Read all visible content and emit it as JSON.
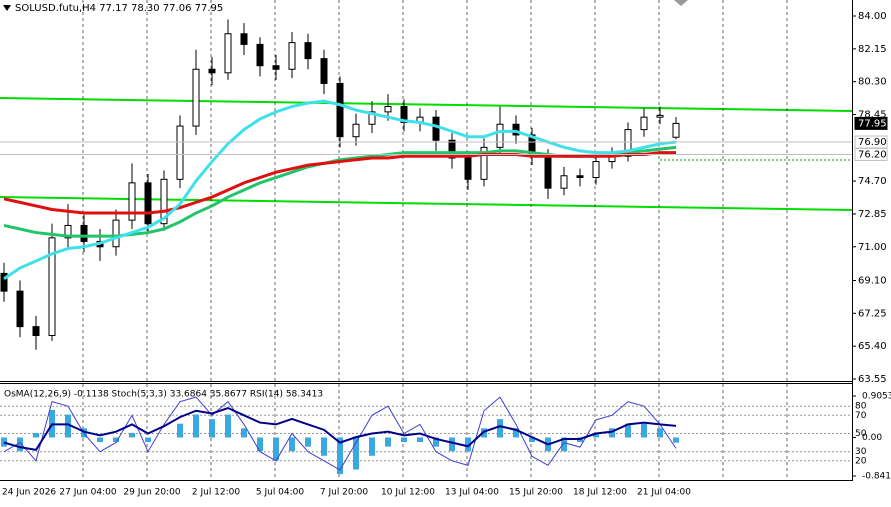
{
  "chart_data": [
    {
      "type": "candlestick",
      "title": "SOLUSD.futu,H4 77.17 78.30 77.06 77.95",
      "ylim": [
        63.55,
        84
      ],
      "yticks": [
        {
          "value": 84,
          "label": "84.00"
        },
        82.15,
        {
          "value": 80.3,
          "label": "80.30"
        },
        78.45,
        {
          "value": 74.7,
          "label": "74.70"
        },
        72.85,
        {
          "value": 71,
          "label": "71.00"
        },
        {
          "value": 69.1,
          "label": "69.10"
        },
        67.25,
        {
          "value": 65.4,
          "label": "65.40"
        },
        63.55
      ],
      "price_tags": [
        {
          "value": 77.95,
          "color": "#000000"
        },
        {
          "value": 76.9,
          "label": "76.90",
          "color": "#c0c0c0"
        },
        {
          "value": 76.2,
          "label": "76.20",
          "color": "#c0c0c0"
        }
      ],
      "xtick_labels": [
        "24 Jun 2026",
        "27 Jun 04:00",
        "29 Jun 20:00",
        "2 Jul 12:00",
        "5 Jul 04:00",
        "7 Jul 20:00",
        "10 Jul 12:00",
        "13 Jul 04:00",
        "15 Jul 20:00",
        "18 Jul 12:00",
        "21 Jul 04:00"
      ],
      "open": [
        69.5,
        68.5,
        66.5,
        66.0,
        71.5,
        72.2,
        71.3,
        71.0,
        72.5,
        74.6,
        72.3,
        74.8,
        77.8,
        81.0,
        80.8,
        83.0,
        82.4,
        81.2,
        81.0,
        82.5,
        81.6,
        80.2,
        77.2,
        77.9,
        78.6,
        78.9,
        78.0,
        78.3,
        77.0,
        76.0,
        74.8,
        76.6,
        77.9,
        77.3,
        76.1,
        74.3,
        75.0,
        74.9,
        75.8,
        76.1,
        77.6,
        78.3,
        77.17
      ],
      "high": [
        70.1,
        69.1,
        67.1,
        72.3,
        73.4,
        72.8,
        72.0,
        73.1,
        75.7,
        75.1,
        75.3,
        78.4,
        82.1,
        81.7,
        83.8,
        83.6,
        82.8,
        81.8,
        83.1,
        83.0,
        82.1,
        80.6,
        78.5,
        79.2,
        79.6,
        79.3,
        78.8,
        78.7,
        77.4,
        76.4,
        77.1,
        78.9,
        78.4,
        77.7,
        76.5,
        75.5,
        75.4,
        76.2,
        76.6,
        78.0,
        78.8,
        78.9,
        78.3
      ],
      "low": [
        67.9,
        65.9,
        65.2,
        65.7,
        70.9,
        70.7,
        70.2,
        70.5,
        72.0,
        71.8,
        71.9,
        74.3,
        77.3,
        80.1,
        80.4,
        81.8,
        80.6,
        80.4,
        80.5,
        81.0,
        79.6,
        76.6,
        76.7,
        77.4,
        78.1,
        77.5,
        77.5,
        76.4,
        75.4,
        74.2,
        74.4,
        76.2,
        76.8,
        75.6,
        73.7,
        73.9,
        74.4,
        74.5,
        75.4,
        75.8,
        77.2,
        77.9,
        77.06
      ],
      "close": [
        68.5,
        66.5,
        66.0,
        71.5,
        72.2,
        71.3,
        71.0,
        72.5,
        74.6,
        72.3,
        74.8,
        77.8,
        81.0,
        80.8,
        83.0,
        82.4,
        81.2,
        81.0,
        82.5,
        81.6,
        80.2,
        77.2,
        77.9,
        78.6,
        78.9,
        78.0,
        78.3,
        77.0,
        76.0,
        74.8,
        76.6,
        77.9,
        77.3,
        76.1,
        74.3,
        75.0,
        74.9,
        75.8,
        76.1,
        77.6,
        78.3,
        78.4,
        77.95
      ],
      "overlays": [
        {
          "color": "#22c46a",
          "values": [
            72.2,
            72.0,
            71.8,
            71.7,
            71.6,
            71.6,
            71.6,
            71.6,
            71.7,
            71.8,
            72.0,
            72.4,
            72.9,
            73.3,
            73.8,
            74.2,
            74.6,
            74.9,
            75.2,
            75.5,
            75.7,
            75.9,
            76.0,
            76.1,
            76.2,
            76.3,
            76.3,
            76.3,
            76.3,
            76.3,
            76.3,
            76.4,
            76.4,
            76.3,
            76.2,
            76.1,
            76.1,
            76.1,
            76.2,
            76.3,
            76.4,
            76.5,
            76.6
          ]
        },
        {
          "color": "#e01010",
          "values": [
            73.7,
            73.5,
            73.3,
            73.1,
            73.0,
            72.9,
            72.9,
            72.9,
            72.9,
            72.9,
            73.0,
            73.2,
            73.5,
            73.8,
            74.2,
            74.6,
            74.9,
            75.2,
            75.4,
            75.6,
            75.7,
            75.8,
            75.9,
            76.0,
            76.0,
            76.1,
            76.1,
            76.1,
            76.1,
            76.1,
            76.2,
            76.2,
            76.2,
            76.1,
            76.1,
            76.1,
            76.1,
            76.1,
            76.1,
            76.2,
            76.2,
            76.3,
            76.3
          ]
        },
        {
          "color": "#40e0ea",
          "values": [
            69.2,
            69.8,
            70.2,
            70.6,
            70.9,
            71.0,
            71.2,
            71.5,
            71.8,
            72.1,
            72.6,
            73.4,
            74.7,
            75.8,
            76.8,
            77.6,
            78.2,
            78.6,
            78.9,
            79.1,
            79.2,
            79.0,
            78.7,
            78.5,
            78.3,
            78.1,
            78.0,
            77.8,
            77.5,
            77.2,
            77.2,
            77.5,
            77.5,
            77.2,
            76.9,
            76.6,
            76.4,
            76.3,
            76.3,
            76.4,
            76.6,
            76.8,
            76.9
          ]
        }
      ]
    },
    {
      "type": "oscillator",
      "title": "OsMA(12,26,9) -0.1138 Stoch(5,3,3) 33.6864 35.8677 RSI(14) 58.3413",
      "ylim": [
        -0.8412,
        0.9053
      ],
      "yticks": [
        0.9053,
        {
          "value": 0,
          "label": "0.00"
        },
        -0.8412
      ],
      "y2lim": [
        0,
        100
      ],
      "y2ticks": [
        80,
        70,
        50,
        30,
        20
      ],
      "histogram": {
        "color": "#3aa8e0",
        "values": [
          -0.2,
          -0.3,
          0.1,
          0.6,
          0.5,
          0.2,
          -0.1,
          -0.1,
          0.1,
          -0.1,
          0.0,
          0.3,
          0.5,
          0.4,
          0.5,
          0.2,
          -0.3,
          -0.5,
          -0.3,
          -0.2,
          -0.4,
          -0.8,
          -0.7,
          -0.4,
          -0.2,
          -0.1,
          -0.1,
          -0.2,
          -0.3,
          -0.3,
          0.2,
          0.4,
          0.2,
          -0.1,
          -0.3,
          -0.3,
          -0.1,
          0.1,
          0.2,
          0.3,
          0.3,
          0.2,
          -0.1138
        ]
      },
      "series": [
        {
          "color": "#4040d0",
          "axis": "y2",
          "values": [
            30,
            40,
            20,
            85,
            80,
            50,
            30,
            40,
            70,
            30,
            60,
            85,
            90,
            70,
            85,
            60,
            30,
            20,
            50,
            30,
            20,
            10,
            40,
            70,
            80,
            50,
            60,
            30,
            20,
            15,
            75,
            90,
            60,
            25,
            15,
            40,
            35,
            65,
            70,
            85,
            80,
            60,
            33.6864
          ]
        },
        {
          "color": "#00008b",
          "axis": "y2",
          "values": [
            40,
            35,
            32,
            60,
            60,
            52,
            48,
            52,
            60,
            50,
            58,
            68,
            75,
            72,
            78,
            70,
            62,
            60,
            66,
            60,
            54,
            40,
            46,
            50,
            52,
            48,
            50,
            44,
            40,
            36,
            52,
            58,
            54,
            46,
            38,
            44,
            44,
            50,
            52,
            60,
            62,
            60,
            58.3413
          ]
        }
      ]
    }
  ]
}
